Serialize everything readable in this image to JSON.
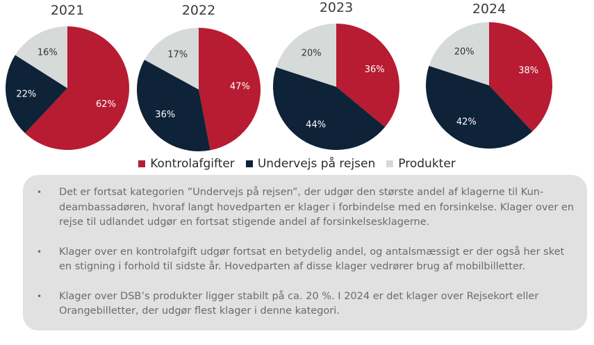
{
  "chart_data": [
    {
      "type": "pie",
      "title": "2021",
      "slices": [
        {
          "label": "Kontrolafgifter",
          "value": 62,
          "text": "62%"
        },
        {
          "label": "Undervejs på rejsen",
          "value": 22,
          "text": "22%"
        },
        {
          "label": "Produkter",
          "value": 16,
          "text": "16%"
        }
      ]
    },
    {
      "type": "pie",
      "title": "2022",
      "slices": [
        {
          "label": "Kontrolafgifter",
          "value": 47,
          "text": "47%"
        },
        {
          "label": "Undervejs på rejsen",
          "value": 36,
          "text": "36%"
        },
        {
          "label": "Produkter",
          "value": 17,
          "text": "17%"
        }
      ]
    },
    {
      "type": "pie",
      "title": "2023",
      "slices": [
        {
          "label": "Kontrolafgifter",
          "value": 36,
          "text": "36%"
        },
        {
          "label": "Undervejs på rejsen",
          "value": 44,
          "text": "44%"
        },
        {
          "label": "Produkter",
          "value": 20,
          "text": "20%"
        }
      ]
    },
    {
      "type": "pie",
      "title": "2024",
      "slices": [
        {
          "label": "Kontrolafgifter",
          "value": 38,
          "text": "38%"
        },
        {
          "label": "Undervejs på rejsen",
          "value": 42,
          "text": "42%"
        },
        {
          "label": "Produkter",
          "value": 20,
          "text": "20%"
        }
      ]
    }
  ],
  "colors": {
    "Kontrolafgifter": "#b71c32",
    "Undervejs på rejsen": "#0e2238",
    "Produkter": "#d6dad8"
  },
  "label_colors": {
    "Kontrolafgifter": "#ffffff",
    "Undervejs på rejsen": "#ffffff",
    "Produkter": "#333333"
  },
  "legend": [
    {
      "label": "Kontrolafgifter",
      "color": "#b71c32"
    },
    {
      "label": "Undervejs på rejsen",
      "color": "#0e2238"
    },
    {
      "label": "Produkter",
      "color": "#d6dad8"
    }
  ],
  "notes": {
    "bullet_char": "•",
    "items": [
      {
        "text": "Det er fortsat kategorien ”Undervejs på rejsen”, der udgør den største andel af klagerne til Kun-deambassadøren, hvoraf langt hovedparten er klager i forbindelse med en forsinkelse. Klager over en rejse til udlandet udgør en fortsat stigende andel af forsinkelsesklagerne."
      },
      {
        "text": "Klager over en kontrolafgift udgør fortsat en betydelig andel, og antalsmæssigt er der også her sket en stigning i forhold til sidste år. Hovedparten af disse klager vedrører brug af mobilbilletter."
      },
      {
        "text": "Klager over DSB’s produkter ligger stabilt på ca. 20 %. I 2024 er det klager over Rejsekort eller Orangebilletter, der udgør flest klager i denne kategori."
      }
    ]
  }
}
